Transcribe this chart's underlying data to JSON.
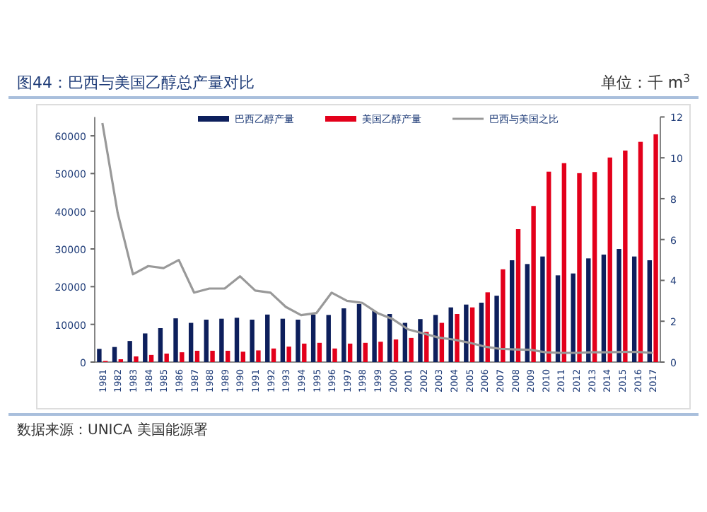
{
  "chart_data": {
    "type": "bar",
    "title": "图44：巴西与美国乙醇总产量对比",
    "annotations": [
      "单位：千 m$^{3}$",
      "数据来源：UNICA 美国能源署"
    ],
    "categories": [
      "1981",
      "1982",
      "1983",
      "1984",
      "1985",
      "1986",
      "1987",
      "1988",
      "1989",
      "1990",
      "1991",
      "1992",
      "1993",
      "1994",
      "1995",
      "1996",
      "1997",
      "1998",
      "1999",
      "2000",
      "2001",
      "2002",
      "2003",
      "2004",
      "2005",
      "2006",
      "2007",
      "2008",
      "2009",
      "2010",
      "2011",
      "2012",
      "2013",
      "2014",
      "2015",
      "2016",
      "2017"
    ],
    "series": [
      {
        "name": "巴西乙醇产量",
        "color": "#0d1f5c",
        "values": [
          3500,
          4000,
          5600,
          7600,
          9000,
          11600,
          10400,
          11250,
          11500,
          11750,
          11250,
          12600,
          11500,
          11250,
          12600,
          12500,
          14250,
          15400,
          13500,
          12750,
          10400,
          11400,
          12500,
          14500,
          15250,
          15750,
          17600,
          27000,
          26000,
          28000,
          23000,
          23500,
          27500,
          28500,
          30000,
          28000,
          27000
        ]
      },
      {
        "name": "美国乙醇产量",
        "color": "#e3001b",
        "values": [
          300,
          750,
          1500,
          1900,
          2250,
          2600,
          3000,
          3000,
          3000,
          2750,
          3100,
          3600,
          4100,
          4900,
          5100,
          3600,
          4900,
          5100,
          5400,
          6000,
          6400,
          8000,
          10400,
          12750,
          14500,
          18500,
          24600,
          35250,
          41400,
          50500,
          52750,
          50100,
          50400,
          54250,
          56100,
          58400,
          60400
        ]
      },
      {
        "name": "巴西与美国之比",
        "type": "line",
        "axis": "y2",
        "color": "#999999",
        "values": [
          11.7,
          7.3,
          4.3,
          4.7,
          4.6,
          5.0,
          3.4,
          3.6,
          3.6,
          4.2,
          3.5,
          3.4,
          2.7,
          2.3,
          2.4,
          3.4,
          3.0,
          2.9,
          2.4,
          2.1,
          1.6,
          1.4,
          1.2,
          1.1,
          0.95,
          0.76,
          0.65,
          0.62,
          0.6,
          0.48,
          0.45,
          0.45,
          0.48,
          0.48,
          0.5,
          0.5,
          0.45
        ]
      }
    ],
    "ylim": [
      0,
      65000
    ],
    "yticks": [
      0,
      10000,
      20000,
      30000,
      40000,
      50000,
      60000
    ],
    "y2lim": [
      0,
      12
    ],
    "y2ticks": [
      0,
      2,
      4,
      6,
      8,
      10,
      12
    ],
    "legend": "top",
    "grid": false,
    "marker": "none",
    "line_style": "solid"
  }
}
